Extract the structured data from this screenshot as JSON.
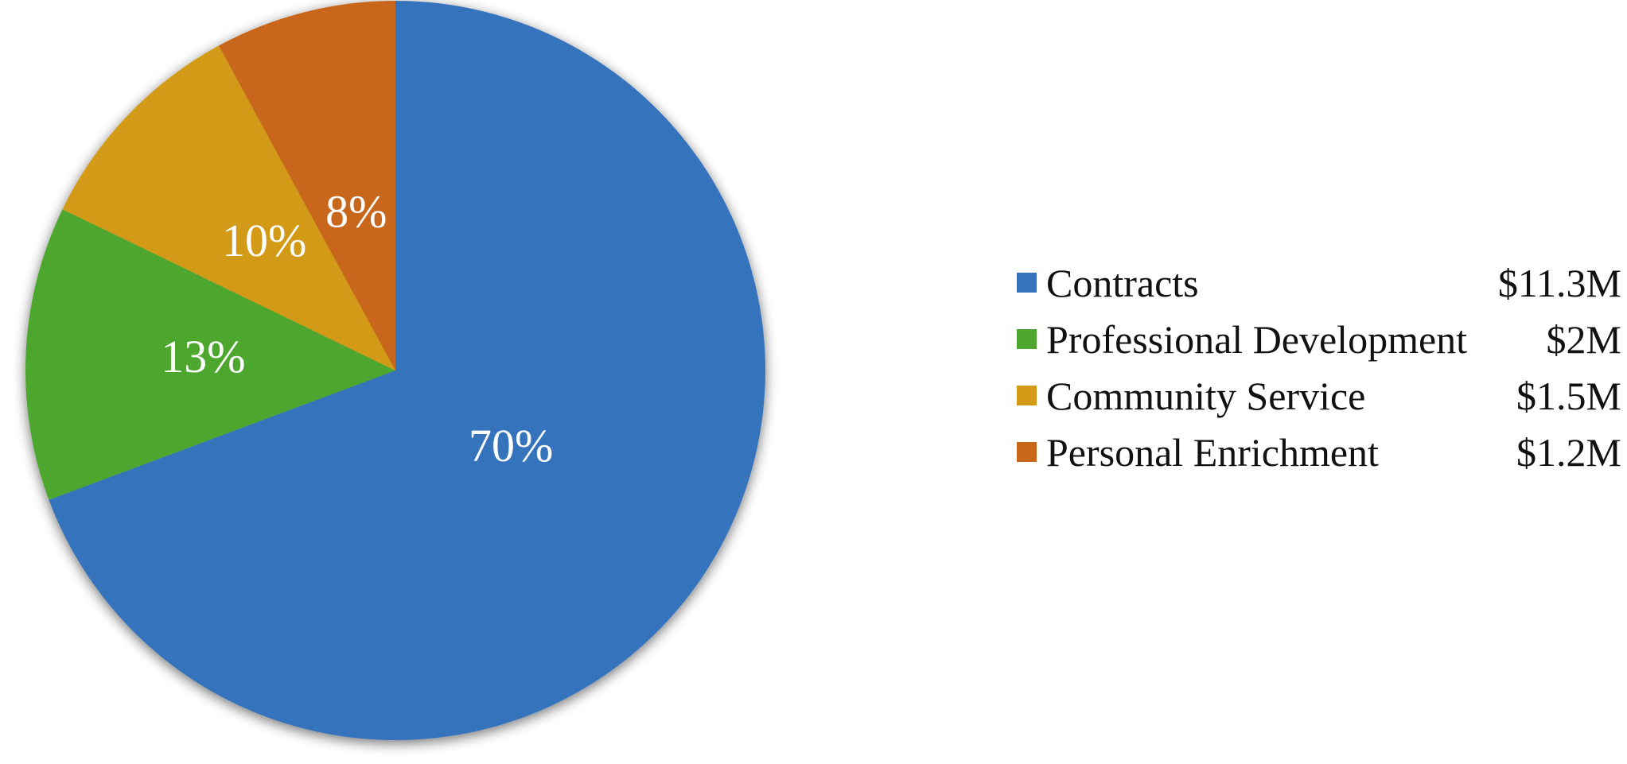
{
  "chart_data": {
    "type": "pie",
    "title": "",
    "slices": [
      {
        "label": "Contracts",
        "percent": 70,
        "percent_label": "70%",
        "amount_label": "$11.3M",
        "color": "#3673BC"
      },
      {
        "label": "Professional Development",
        "percent": 13,
        "percent_label": "13%",
        "amount_label": "$2M",
        "color": "#4DA72E"
      },
      {
        "label": "Community Service",
        "percent": 10,
        "percent_label": "10%",
        "amount_label": "$1.5M",
        "color": "#D29A17"
      },
      {
        "label": "Personal Enrichment",
        "percent": 8,
        "percent_label": "8%",
        "amount_label": "$1.2M",
        "color": "#C8661A"
      }
    ],
    "legend_position": "right",
    "label_color": "#FFFFFF"
  }
}
